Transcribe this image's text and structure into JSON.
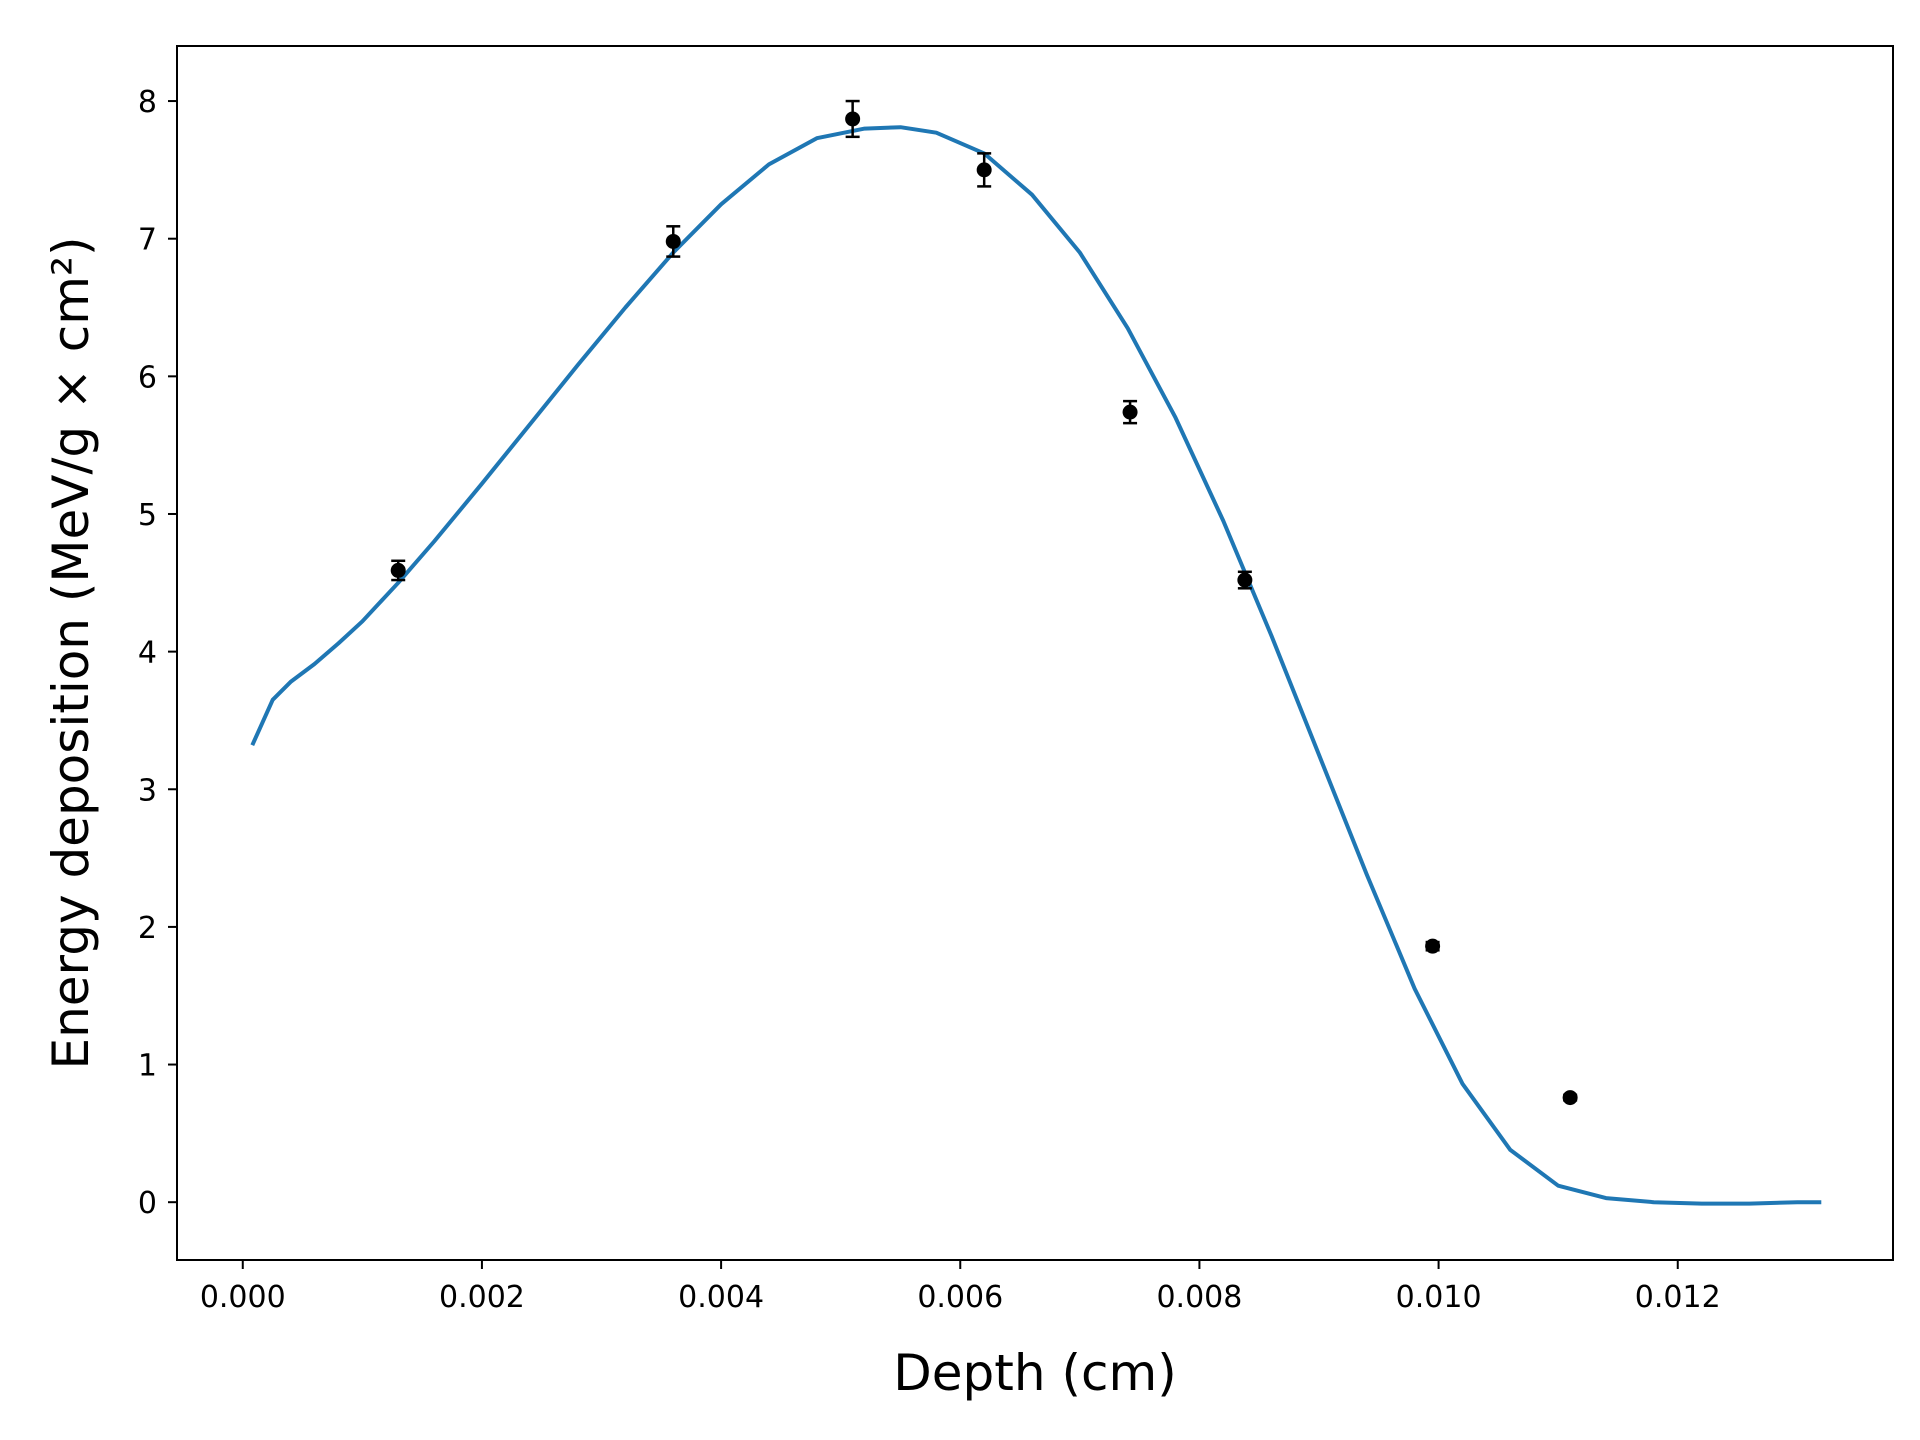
{
  "chart_data": {
    "type": "line",
    "title": "",
    "xlabel": "Depth (cm)",
    "ylabel": "Energy deposition (MeV/g × cm²)",
    "xlim": [
      -0.00055,
      0.0138
    ],
    "ylim": [
      -0.42,
      8.4
    ],
    "grid": false,
    "legend": "none",
    "x_ticks": [
      0.0,
      0.002,
      0.004,
      0.006,
      0.008,
      0.01,
      0.012
    ],
    "x_tick_labels": [
      "0.000",
      "0.002",
      "0.004",
      "0.006",
      "0.008",
      "0.010",
      "0.012"
    ],
    "y_ticks": [
      0,
      1,
      2,
      3,
      4,
      5,
      6,
      7,
      8
    ],
    "y_tick_labels": [
      "0",
      "1",
      "2",
      "3",
      "4",
      "5",
      "6",
      "7",
      "8"
    ],
    "series": [
      {
        "kind": "line",
        "color": "#1f77b4",
        "x": [
          8e-05,
          0.00025,
          0.0004,
          0.0006,
          0.0008,
          0.001,
          0.0013,
          0.0016,
          0.002,
          0.0024,
          0.0028,
          0.0032,
          0.0036,
          0.004,
          0.0044,
          0.0048,
          0.0052,
          0.0055,
          0.0058,
          0.0062,
          0.0066,
          0.007,
          0.0074,
          0.0078,
          0.0082,
          0.0086,
          0.009,
          0.0094,
          0.0098,
          0.0102,
          0.0106,
          0.011,
          0.0114,
          0.0118,
          0.0122,
          0.0126,
          0.013,
          0.0132
        ],
        "y": [
          3.32,
          3.65,
          3.78,
          3.91,
          4.06,
          4.22,
          4.5,
          4.8,
          5.22,
          5.65,
          6.08,
          6.5,
          6.9,
          7.25,
          7.54,
          7.73,
          7.8,
          7.81,
          7.77,
          7.62,
          7.32,
          6.9,
          6.35,
          5.7,
          4.95,
          4.12,
          3.25,
          2.38,
          1.55,
          0.86,
          0.38,
          0.12,
          0.03,
          0.0,
          -0.01,
          -0.01,
          0.0,
          0.0
        ]
      },
      {
        "kind": "errorbar",
        "color": "#000000",
        "x": [
          0.0013,
          0.0036,
          0.0051,
          0.0062,
          0.00742,
          0.00838,
          0.00995,
          0.0111
        ],
        "y": [
          4.59,
          6.98,
          7.87,
          7.5,
          5.74,
          4.52,
          1.86,
          0.76
        ],
        "yerr": [
          0.07,
          0.11,
          0.13,
          0.12,
          0.08,
          0.06,
          0.03,
          0.02
        ]
      }
    ]
  }
}
